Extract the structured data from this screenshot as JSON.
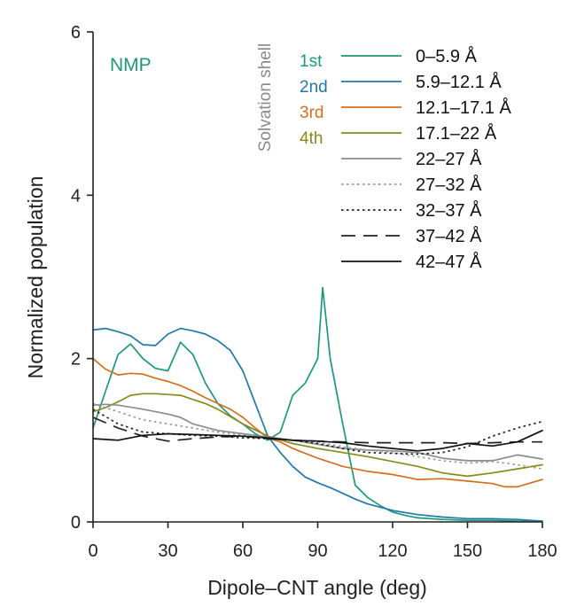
{
  "chart_data": {
    "type": "line",
    "title": "",
    "annotation": "NMP",
    "xlabel": "Dipole–CNT angle (deg)",
    "ylabel": "Normalized population",
    "xlim": [
      0,
      180
    ],
    "ylim": [
      0,
      6
    ],
    "xticks": [
      "0",
      "30",
      "60",
      "90",
      "120",
      "150",
      "180"
    ],
    "yticks": [
      "0",
      "2",
      "4",
      "6"
    ],
    "legend_group_title": "Solvation shell",
    "legend_placement": "top-right",
    "shell_labels": [
      {
        "text": "1st",
        "color": "#1a9a7a"
      },
      {
        "text": "2nd",
        "color": "#1f7aaa"
      },
      {
        "text": "3rd",
        "color": "#d66f1c"
      },
      {
        "text": "4th",
        "color": "#8a8a18"
      }
    ],
    "series": [
      {
        "name": "0–5.9 Å",
        "color": "#1a9a7a",
        "dash": "solid",
        "x": [
          0,
          5,
          10,
          15,
          20,
          25,
          30,
          35,
          40,
          45,
          50,
          55,
          60,
          65,
          70,
          75,
          80,
          85,
          90,
          92,
          95,
          100,
          105,
          110,
          115,
          120,
          125,
          130,
          140,
          150,
          160,
          170,
          180
        ],
        "y": [
          1.15,
          1.6,
          2.05,
          2.18,
          2.0,
          1.88,
          1.85,
          2.2,
          2.05,
          1.7,
          1.45,
          1.3,
          1.2,
          1.08,
          1.0,
          1.1,
          1.55,
          1.7,
          2.0,
          2.87,
          2.0,
          1.2,
          0.45,
          0.3,
          0.2,
          0.12,
          0.08,
          0.05,
          0.03,
          0.02,
          0.02,
          0.01,
          0.01
        ]
      },
      {
        "name": "5.9–12.1 Å",
        "color": "#1f7aaa",
        "dash": "solid",
        "x": [
          0,
          5,
          10,
          15,
          20,
          25,
          30,
          35,
          40,
          45,
          50,
          55,
          60,
          65,
          70,
          75,
          80,
          85,
          90,
          95,
          100,
          105,
          110,
          120,
          130,
          140,
          150,
          160,
          170,
          180
        ],
        "y": [
          2.35,
          2.37,
          2.33,
          2.28,
          2.17,
          2.16,
          2.3,
          2.37,
          2.34,
          2.3,
          2.22,
          2.1,
          1.85,
          1.45,
          1.05,
          0.85,
          0.68,
          0.55,
          0.48,
          0.42,
          0.35,
          0.28,
          0.22,
          0.14,
          0.09,
          0.06,
          0.04,
          0.04,
          0.03,
          0.01
        ]
      },
      {
        "name": "12.1–17.1 Å",
        "color": "#d66f1c",
        "dash": "solid",
        "x": [
          0,
          5,
          10,
          15,
          20,
          25,
          30,
          35,
          40,
          45,
          50,
          55,
          60,
          65,
          70,
          75,
          80,
          90,
          100,
          110,
          120,
          130,
          140,
          150,
          160,
          165,
          170,
          180
        ],
        "y": [
          2.0,
          1.87,
          1.8,
          1.82,
          1.81,
          1.76,
          1.72,
          1.67,
          1.6,
          1.52,
          1.45,
          1.38,
          1.28,
          1.15,
          1.03,
          0.98,
          0.9,
          0.78,
          0.68,
          0.62,
          0.58,
          0.52,
          0.53,
          0.5,
          0.47,
          0.43,
          0.43,
          0.52
        ]
      },
      {
        "name": "17.1–22 Å",
        "color": "#8a8a18",
        "dash": "solid",
        "x": [
          0,
          5,
          10,
          15,
          20,
          25,
          30,
          35,
          40,
          45,
          50,
          60,
          70,
          80,
          90,
          100,
          110,
          120,
          130,
          140,
          150,
          160,
          170,
          180
        ],
        "y": [
          1.35,
          1.4,
          1.47,
          1.55,
          1.57,
          1.57,
          1.56,
          1.55,
          1.5,
          1.45,
          1.38,
          1.2,
          1.05,
          0.96,
          0.9,
          0.85,
          0.8,
          0.74,
          0.68,
          0.6,
          0.56,
          0.6,
          0.65,
          0.7
        ]
      },
      {
        "name": "22–27 Å",
        "color": "#8c8c8c",
        "dash": "solid",
        "x": [
          0,
          5,
          10,
          20,
          30,
          35,
          40,
          50,
          60,
          70,
          80,
          90,
          100,
          110,
          120,
          130,
          140,
          150,
          160,
          170,
          180
        ],
        "y": [
          1.43,
          1.44,
          1.43,
          1.38,
          1.32,
          1.28,
          1.2,
          1.12,
          1.08,
          1.04,
          1.0,
          0.95,
          0.9,
          0.88,
          0.87,
          0.85,
          0.78,
          0.75,
          0.75,
          0.82,
          0.77
        ]
      },
      {
        "name": "27–32 Å",
        "color": "#9a9a9a",
        "dash": "dotted",
        "x": [
          0,
          10,
          20,
          30,
          40,
          50,
          60,
          70,
          80,
          90,
          100,
          110,
          120,
          130,
          140,
          150,
          160,
          170,
          180
        ],
        "y": [
          1.45,
          1.35,
          1.25,
          1.2,
          1.15,
          1.1,
          1.06,
          1.03,
          1.0,
          0.98,
          0.92,
          0.88,
          0.85,
          0.8,
          0.75,
          0.72,
          0.74,
          0.7,
          0.65
        ]
      },
      {
        "name": "32–37 Å",
        "color": "#222222",
        "dash": "dotted",
        "x": [
          0,
          10,
          20,
          30,
          40,
          50,
          60,
          70,
          80,
          90,
          100,
          110,
          120,
          130,
          140,
          150,
          160,
          170,
          180
        ],
        "y": [
          1.38,
          1.2,
          1.1,
          1.08,
          1.06,
          1.05,
          1.03,
          1.02,
          1.0,
          0.96,
          0.9,
          0.85,
          0.84,
          0.83,
          0.85,
          0.92,
          1.05,
          1.15,
          1.23
        ]
      },
      {
        "name": "37–42 Å",
        "color": "#222222",
        "dash": "dashed",
        "x": [
          0,
          10,
          20,
          30,
          40,
          50,
          60,
          70,
          80,
          90,
          100,
          110,
          120,
          130,
          140,
          150,
          160,
          170,
          180
        ],
        "y": [
          1.28,
          1.15,
          1.05,
          0.99,
          1.02,
          1.04,
          1.05,
          1.02,
          1.0,
          0.99,
          0.98,
          0.97,
          0.97,
          0.97,
          0.97,
          0.96,
          0.97,
          0.98,
          0.98
        ]
      },
      {
        "name": "42–47 Å",
        "color": "#111111",
        "dash": "solid",
        "x": [
          0,
          10,
          20,
          30,
          40,
          50,
          60,
          70,
          80,
          90,
          100,
          110,
          120,
          130,
          140,
          150,
          160,
          170,
          180
        ],
        "y": [
          1.02,
          1.0,
          1.06,
          1.08,
          1.07,
          1.06,
          1.05,
          1.03,
          1.0,
          0.99,
          0.97,
          0.93,
          0.9,
          0.87,
          0.9,
          0.96,
          0.93,
          0.98,
          1.12
        ]
      }
    ]
  }
}
